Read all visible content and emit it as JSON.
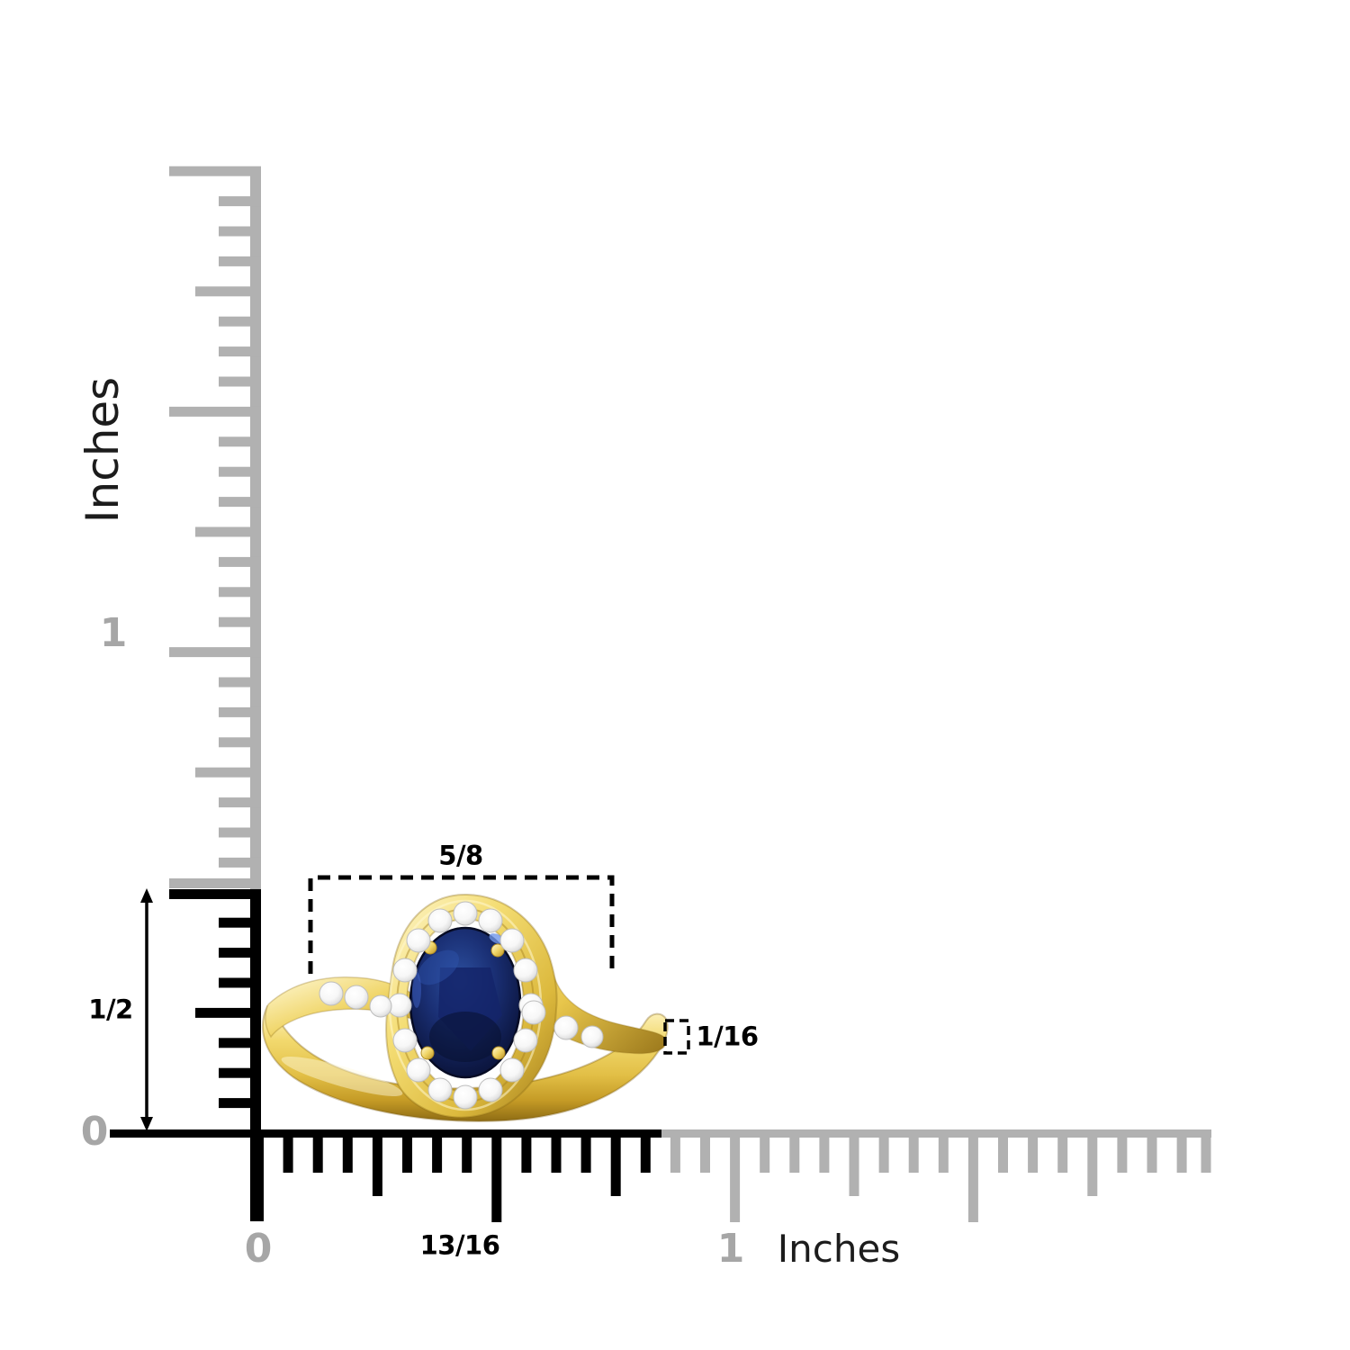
{
  "colors": {
    "background": "#ffffff",
    "ruler_gray": "#b1b1b1",
    "ruler_black": "#000000",
    "label_gray": "#a6a6a6",
    "label_dark": "#1c1c1c",
    "annotation_black": "#000000",
    "gold_light": "#fdf4b8",
    "gold_mid": "#eac94e",
    "gold_deep": "#c49c28",
    "gold_shadow": "#8f6d16",
    "sapphire_light": "#2c4f9e",
    "sapphire_mid": "#16296e",
    "sapphire_dark": "#0a1238",
    "diamond_white": "#ffffff",
    "diamond_edge": "#c4c4c4"
  },
  "vertical_ruler": {
    "unit": "Inches",
    "labels": {
      "zero": "0",
      "one": "1"
    }
  },
  "horizontal_ruler": {
    "unit": "Inches",
    "labels": {
      "zero": "0",
      "one": "1"
    }
  },
  "annotations": {
    "ring_height": "1/2",
    "head_width": "5/8",
    "band_thickness": "1/16",
    "ring_width": "13/16"
  }
}
